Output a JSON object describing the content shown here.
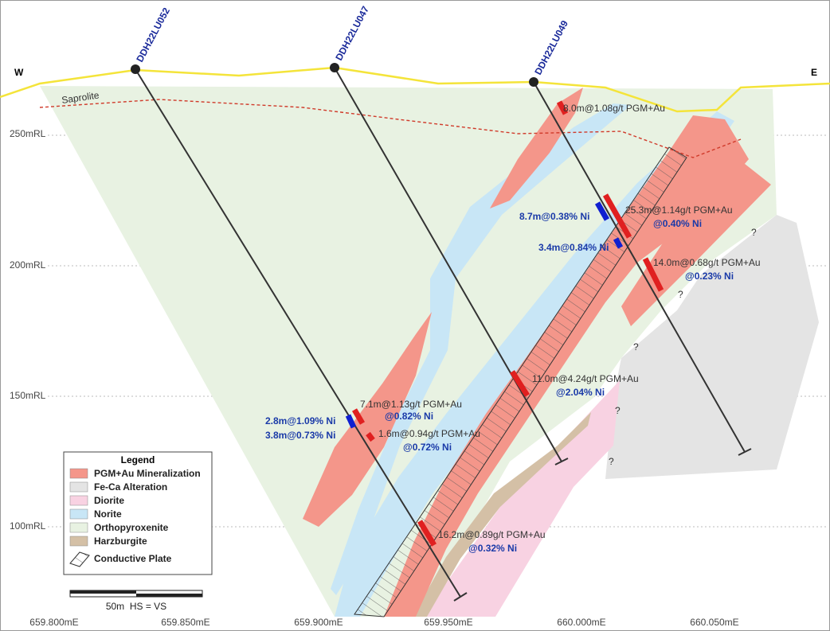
{
  "directions": {
    "west": "W",
    "east": "E"
  },
  "drillholes": [
    {
      "name": "DDH22LU052"
    },
    {
      "name": "DDH22LU047"
    },
    {
      "name": "DDH22LU049"
    }
  ],
  "saprolite_label": "Saprolite",
  "elevation_labels": [
    "250mRL",
    "200mRL",
    "150mRL",
    "100mRL"
  ],
  "easting_labels": [
    "659.800mE",
    "659.850mE",
    "659.900mE",
    "659.950mE",
    "660.000mE",
    "660.050mE"
  ],
  "intercepts": [
    {
      "text": "8.0m@1.08g/t PGM+Au",
      "kind": "pgm"
    },
    {
      "text": "25.3m@1.14g/t PGM+Au",
      "kind": "pgm"
    },
    {
      "text": "@0.40% Ni",
      "kind": "ni"
    },
    {
      "text": "8.7m@0.38% Ni",
      "kind": "ni"
    },
    {
      "text": "3.4m@0.84% Ni",
      "kind": "ni"
    },
    {
      "text": "14.0m@0.68g/t PGM+Au",
      "kind": "pgm"
    },
    {
      "text": "@0.23% Ni",
      "kind": "ni"
    },
    {
      "text": "11.0m@4.24g/t PGM+Au",
      "kind": "pgm"
    },
    {
      "text": "@2.04% Ni",
      "kind": "ni"
    },
    {
      "text": "7.1m@1.13g/t PGM+Au",
      "kind": "pgm"
    },
    {
      "text": "@0.82% Ni",
      "kind": "ni"
    },
    {
      "text": "2.8m@1.09% Ni",
      "kind": "ni"
    },
    {
      "text": "3.8m@0.73% Ni",
      "kind": "ni"
    },
    {
      "text": "1.6m@0.94g/t PGM+Au",
      "kind": "pgm"
    },
    {
      "text": "@0.72% Ni",
      "kind": "ni"
    },
    {
      "text": "16.2m@0.89g/t PGM+Au",
      "kind": "pgm"
    },
    {
      "text": "@0.32% Ni",
      "kind": "ni"
    }
  ],
  "question_marks": [
    "?",
    "?",
    "?",
    "?",
    "?"
  ],
  "legend": {
    "title": "Legend",
    "items": [
      {
        "label": "PGM+Au Mineralization",
        "color": "#f4968a"
      },
      {
        "label": "Fe-Ca Alteration",
        "color": "#e4e4e4"
      },
      {
        "label": "Diorite",
        "color": "#f8d2e2"
      },
      {
        "label": "Norite",
        "color": "#c8e6f6"
      },
      {
        "label": "Orthopyroxenite",
        "color": "#e8f2e2"
      },
      {
        "label": "Harzburgite",
        "color": "#d4c0a6"
      },
      {
        "label": "Conductive Plate",
        "color": "#ffffff"
      }
    ]
  },
  "scale_label": "50m  HS = VS"
}
